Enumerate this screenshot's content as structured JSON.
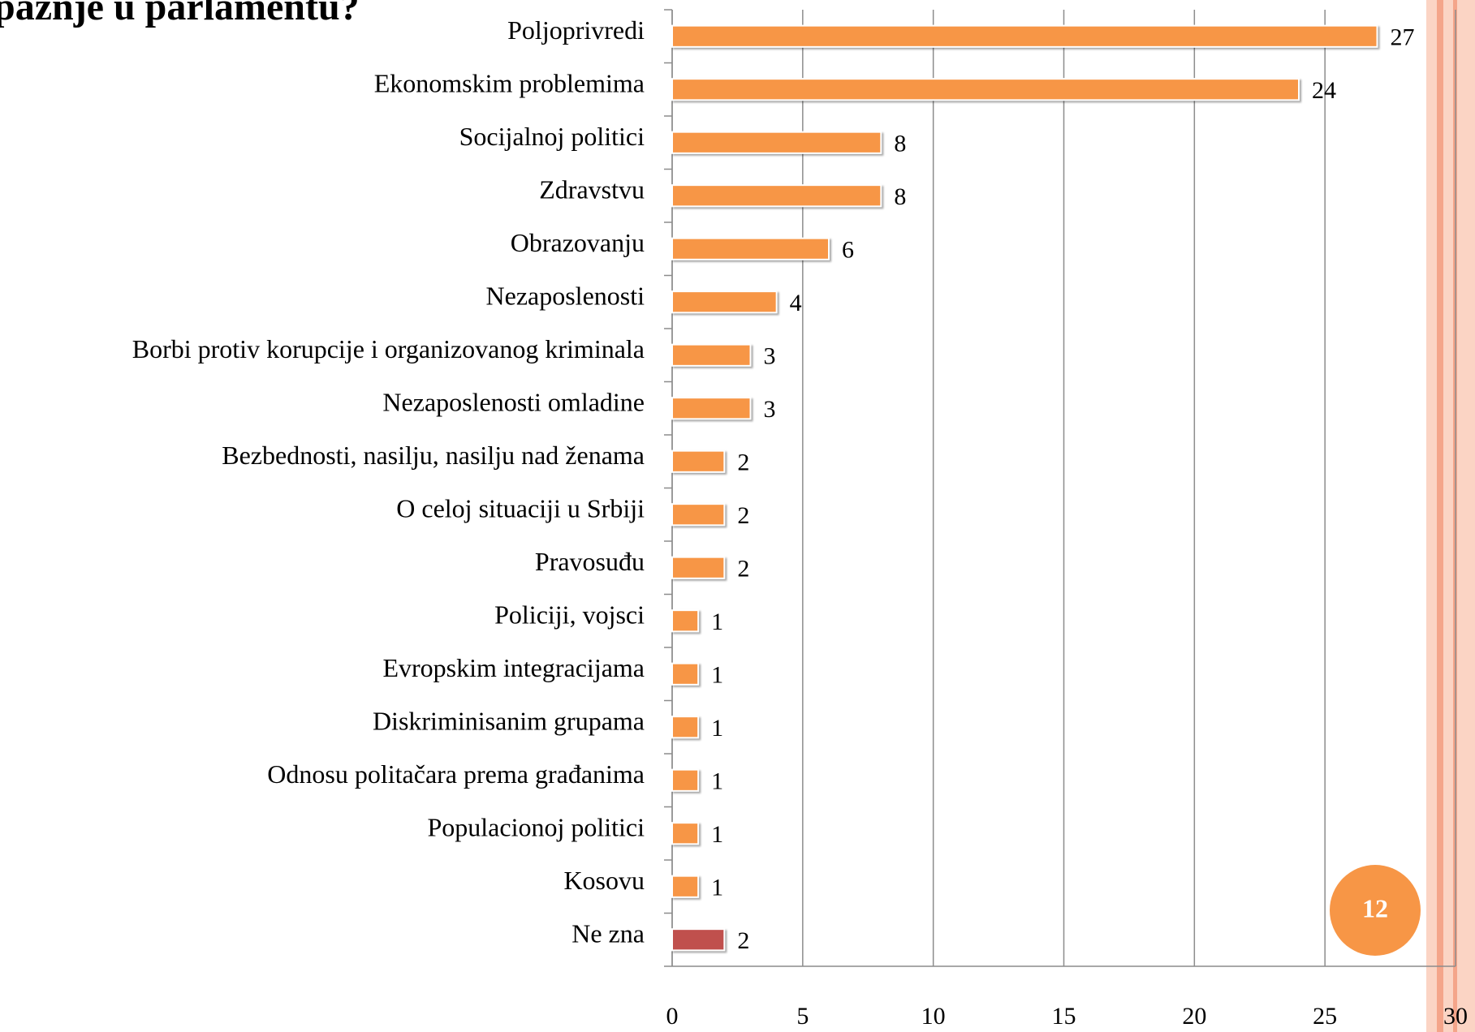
{
  "chart_data": {
    "type": "bar",
    "orientation": "horizontal",
    "title": "pažnje u parlamentu?",
    "categories": [
      "Poljoprivredi",
      "Ekonomskim problemima",
      "Socijalnoj politici",
      "Zdravstvu",
      "Obrazovanju",
      "Nezaposlenosti",
      "Borbi protiv korupcije i organizovanog kriminala",
      "Nezaposlenosti omladine",
      "Bezbednosti, nasilju, nasilju nad ženama",
      "O celoj situaciji u Srbiji",
      "Pravosuđu",
      "Policiji, vojsci",
      "Evropskim integracijama",
      "Diskriminisanim grupama",
      "Odnosu politačara prema građanima",
      "Populacionoj politici",
      "Kosovu",
      "Ne zna"
    ],
    "values": [
      27,
      24,
      8,
      8,
      6,
      4,
      3,
      3,
      2,
      2,
      2,
      1,
      1,
      1,
      1,
      1,
      1,
      2
    ],
    "colors": [
      "#f79646",
      "#f79646",
      "#f79646",
      "#f79646",
      "#f79646",
      "#f79646",
      "#f79646",
      "#f79646",
      "#f79646",
      "#f79646",
      "#f79646",
      "#f79646",
      "#f79646",
      "#f79646",
      "#f79646",
      "#f79646",
      "#f79646",
      "#c0504d"
    ],
    "xlim": [
      0,
      30
    ],
    "xticks": [
      0,
      5,
      10,
      15,
      20,
      25,
      30
    ],
    "grid": true,
    "page_number": "12"
  }
}
